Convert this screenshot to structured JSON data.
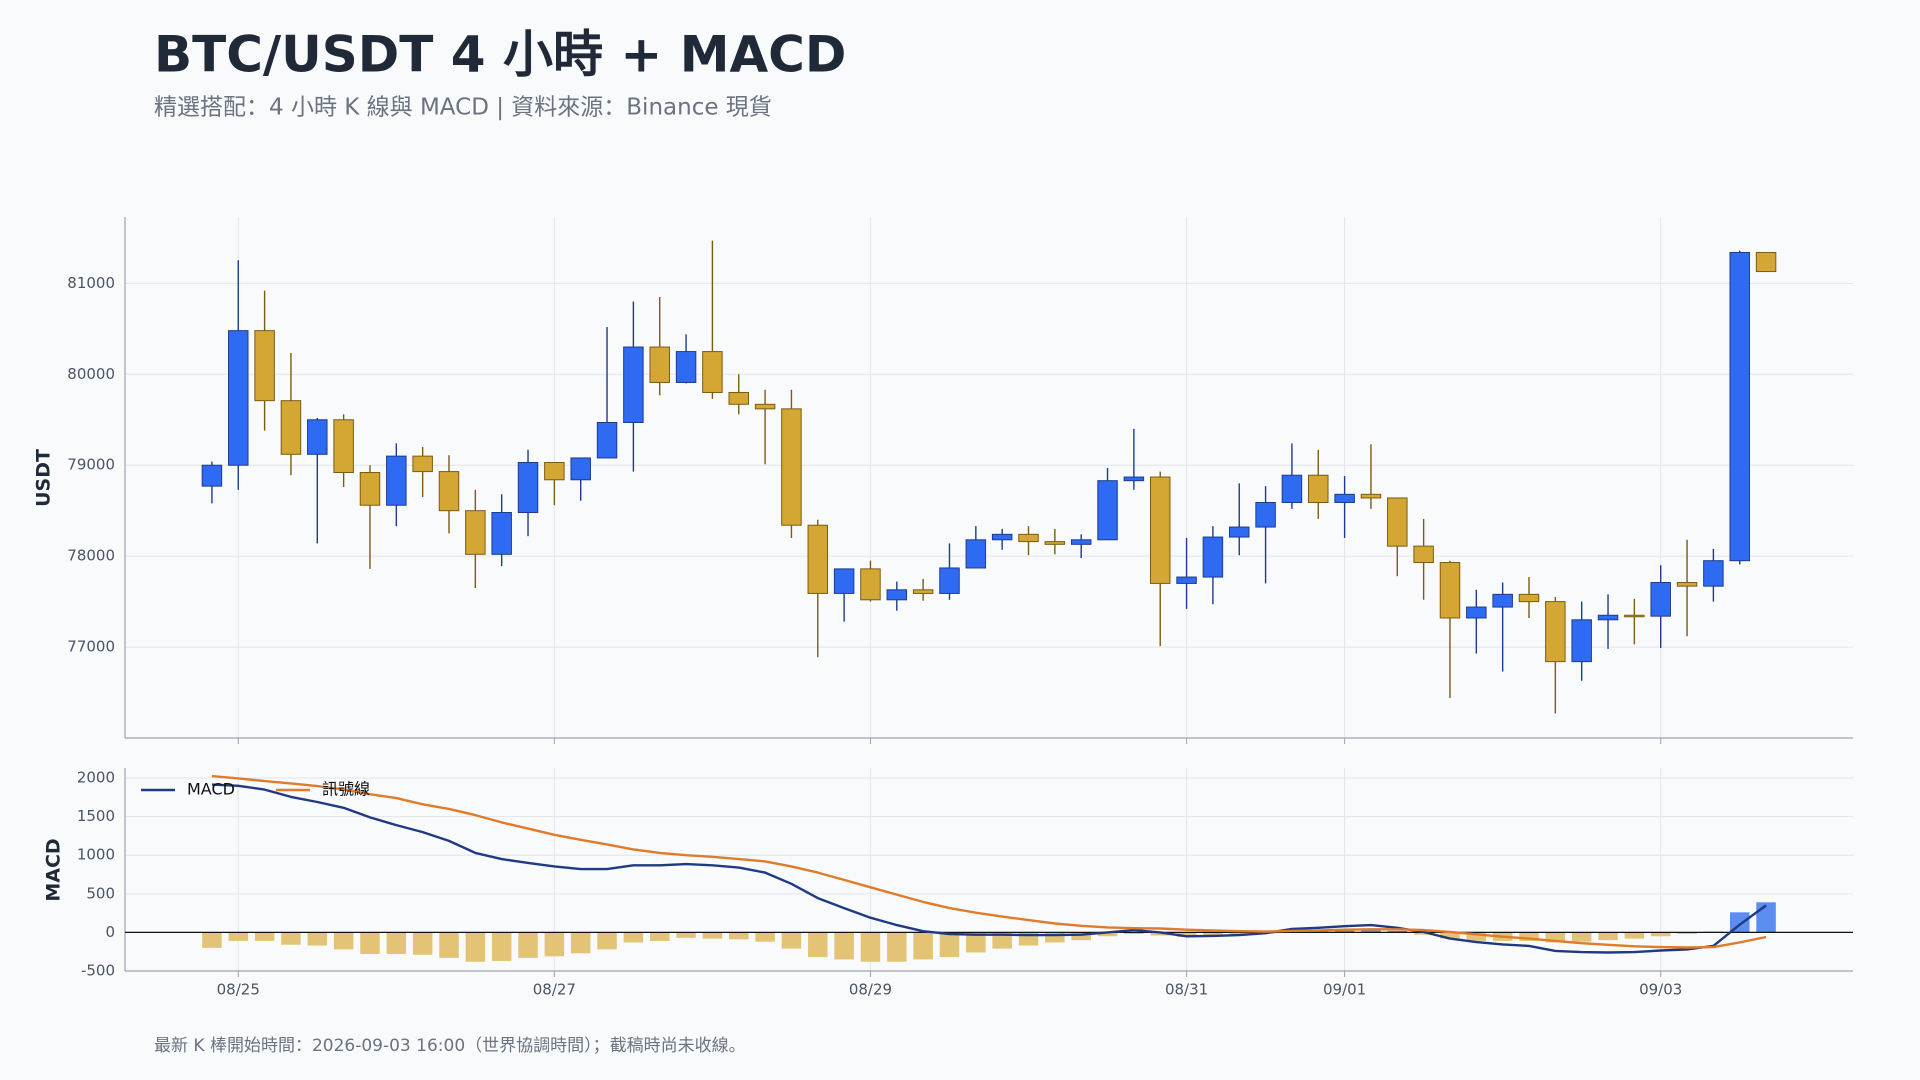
{
  "chart_data": [
    {
      "type": "candlestick",
      "title": "BTC/USDT 4 小時 + MACD",
      "subtitle": "精選搭配：4 小時 K 線與 MACD | 資料來源：Binance 現貨",
      "note": "最新 K 棒開始時間：2026-09-03 16:00（世界協調時間）；截稿時尚未收線。",
      "ylabel": "USDT",
      "up_color": "#2f6bf2",
      "up_edge": "#1d3c8f",
      "down_color": "#d4a634",
      "down_edge": "#7a5c12",
      "grid": true,
      "ylim": [
        76000,
        81730
      ],
      "yticks": [
        77000,
        78000,
        79000,
        80000,
        81000
      ],
      "categories": [
        null,
        "08/25",
        null,
        null,
        null,
        null,
        null,
        null,
        null,
        null,
        null,
        null,
        null,
        "08/27",
        null,
        null,
        null,
        null,
        null,
        null,
        null,
        null,
        null,
        null,
        null,
        "08/29",
        null,
        null,
        null,
        null,
        null,
        null,
        null,
        null,
        null,
        null,
        null,
        "08/31",
        null,
        null,
        null,
        null,
        null,
        "09/01",
        null,
        null,
        null,
        null,
        null,
        null,
        null,
        null,
        null,
        null,
        null,
        "09/03",
        null,
        null,
        null,
        null
      ],
      "open": [
        78770,
        79000,
        80480,
        79710,
        79120,
        79500,
        78920,
        78560,
        79100,
        78930,
        78500,
        78020,
        78480,
        79030,
        78840,
        79080,
        79470,
        80300,
        79910,
        80250,
        79800,
        79670,
        79620,
        78340,
        77590,
        77860,
        77520,
        77630,
        77590,
        77870,
        78180,
        78240,
        78160,
        78130,
        78180,
        78830,
        78870,
        77700,
        77770,
        78210,
        78320,
        78590,
        78890,
        78590,
        78680,
        78640,
        78110,
        77930,
        77320,
        77440,
        77580,
        77500,
        76840,
        77300,
        77350,
        77340,
        77710,
        77670,
        77950,
        81340
      ],
      "high": [
        79040,
        81255,
        80920,
        80235,
        79520,
        79560,
        79000,
        79240,
        79200,
        79110,
        78730,
        78680,
        79170,
        79030,
        79080,
        80520,
        80800,
        80850,
        80440,
        81470,
        80000,
        79830,
        79830,
        78400,
        77860,
        77950,
        77720,
        77750,
        78140,
        78330,
        78300,
        78330,
        78300,
        78240,
        78970,
        79400,
        78930,
        78200,
        78330,
        78800,
        78770,
        79240,
        79170,
        78880,
        79230,
        78640,
        78410,
        77950,
        77630,
        77710,
        77770,
        77550,
        77500,
        77580,
        77530,
        77900,
        78180,
        78080,
        81360,
        81340
      ],
      "low": [
        78580,
        78730,
        79380,
        78890,
        78140,
        78760,
        77860,
        78330,
        78650,
        78250,
        77650,
        77890,
        78220,
        78560,
        78610,
        79080,
        78930,
        79770,
        79900,
        79730,
        79560,
        79010,
        78200,
        76890,
        77280,
        77500,
        77400,
        77510,
        77520,
        77870,
        78070,
        78010,
        78020,
        77980,
        78180,
        78730,
        77010,
        77420,
        77470,
        78010,
        77700,
        78520,
        78410,
        78200,
        78520,
        77780,
        77520,
        76440,
        76930,
        76730,
        77320,
        76270,
        76630,
        76980,
        77030,
        76990,
        77120,
        77500,
        77910,
        81130
      ],
      "close": [
        79000,
        80480,
        79710,
        79120,
        79500,
        78920,
        78560,
        79100,
        78930,
        78500,
        78020,
        78480,
        79030,
        78840,
        79080,
        79470,
        80300,
        79910,
        80250,
        79800,
        79670,
        79620,
        78340,
        77590,
        77860,
        77520,
        77630,
        77590,
        77870,
        78180,
        78240,
        78160,
        78130,
        78180,
        78830,
        78870,
        77700,
        77770,
        78210,
        78320,
        78590,
        78890,
        78590,
        78680,
        78640,
        78110,
        77930,
        77320,
        77440,
        77580,
        77500,
        76840,
        77300,
        77350,
        77340,
        77710,
        77670,
        77950,
        81340,
        81130
      ]
    },
    {
      "type": "line",
      "ylabel": "MACD",
      "grid": true,
      "legend": "upper-left",
      "ylim": [
        -500,
        2130
      ],
      "yticks": [
        -500,
        0,
        500,
        1000,
        1500,
        2000
      ],
      "series": [
        {
          "name": "MACD",
          "color": "#1f3a82",
          "values": [
            1915,
            1900,
            1850,
            1755,
            1690,
            1615,
            1490,
            1390,
            1300,
            1185,
            1030,
            950,
            900,
            855,
            820,
            820,
            870,
            870,
            885,
            870,
            840,
            775,
            630,
            445,
            315,
            190,
            95,
            15,
            -20,
            -30,
            -30,
            -35,
            -35,
            -30,
            0,
            30,
            0,
            -50,
            -45,
            -35,
            -10,
            45,
            60,
            80,
            95,
            60,
            5,
            -80,
            -125,
            -155,
            -175,
            -240,
            -255,
            -260,
            -255,
            -235,
            -220,
            -175,
            100,
            350
          ]
        },
        {
          "name": "訊號線",
          "color": "#e07b2a",
          "values": [
            2025,
            1995,
            1960,
            1930,
            1895,
            1850,
            1790,
            1740,
            1660,
            1600,
            1520,
            1425,
            1345,
            1265,
            1200,
            1140,
            1075,
            1030,
            1000,
            980,
            950,
            920,
            855,
            775,
            680,
            585,
            490,
            395,
            315,
            255,
            205,
            160,
            115,
            85,
            65,
            55,
            50,
            35,
            25,
            15,
            10,
            20,
            25,
            35,
            40,
            40,
            30,
            5,
            -25,
            -55,
            -80,
            -110,
            -140,
            -160,
            -180,
            -190,
            -195,
            -190,
            -130,
            -60
          ]
        }
      ],
      "histogram": {
        "positive_color": "#5b8ef0",
        "negative_color": "#e3c477",
        "values": [
          -200,
          -110,
          -110,
          -160,
          -170,
          -220,
          -280,
          -280,
          -290,
          -330,
          -380,
          -370,
          -330,
          -310,
          -270,
          -220,
          -130,
          -110,
          -70,
          -80,
          -90,
          -120,
          -210,
          -320,
          -350,
          -380,
          -380,
          -350,
          -320,
          -260,
          -210,
          -170,
          -130,
          -100,
          -50,
          -20,
          -40,
          -60,
          -50,
          -30,
          -15,
          20,
          30,
          40,
          40,
          20,
          -30,
          -80,
          -110,
          -110,
          -110,
          -130,
          -120,
          -100,
          -80,
          -50,
          -20,
          10,
          260,
          390
        ]
      }
    }
  ]
}
